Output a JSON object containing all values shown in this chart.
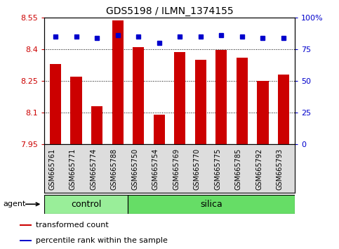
{
  "title": "GDS5198 / ILMN_1374155",
  "samples": [
    "GSM665761",
    "GSM665771",
    "GSM665774",
    "GSM665788",
    "GSM665750",
    "GSM665754",
    "GSM665769",
    "GSM665770",
    "GSM665775",
    "GSM665785",
    "GSM665792",
    "GSM665793"
  ],
  "bar_values": [
    8.33,
    8.27,
    8.13,
    8.535,
    8.41,
    8.09,
    8.385,
    8.35,
    8.395,
    8.36,
    8.25,
    8.28
  ],
  "percentile_values": [
    85,
    85,
    84,
    86,
    85,
    80,
    85,
    85,
    86,
    85,
    84,
    84
  ],
  "ylim_left": [
    7.95,
    8.55
  ],
  "ylim_right": [
    0,
    100
  ],
  "yticks_left": [
    7.95,
    8.1,
    8.25,
    8.4,
    8.55
  ],
  "yticks_right": [
    0,
    25,
    50,
    75,
    100
  ],
  "ytick_labels_left": [
    "7.95",
    "8.1",
    "8.25",
    "8.4",
    "8.55"
  ],
  "ytick_labels_right": [
    "0",
    "25",
    "50",
    "75",
    "100%"
  ],
  "bar_color": "#cc0000",
  "dot_color": "#0000cc",
  "control_indices": [
    0,
    1,
    2,
    3
  ],
  "silica_indices": [
    4,
    5,
    6,
    7,
    8,
    9,
    10,
    11
  ],
  "control_label": "control",
  "silica_label": "silica",
  "control_color": "#99ee99",
  "silica_color": "#66dd66",
  "group_row_label": "agent",
  "legend_items": [
    {
      "color": "#cc0000",
      "label": "transformed count"
    },
    {
      "color": "#0000cc",
      "label": "percentile rank within the sample"
    }
  ],
  "tick_label_color_left": "#cc0000",
  "tick_label_color_right": "#0000cc",
  "tick_fontsize": 8,
  "title_fontsize": 10,
  "sample_fontsize": 7,
  "legend_fontsize": 8
}
